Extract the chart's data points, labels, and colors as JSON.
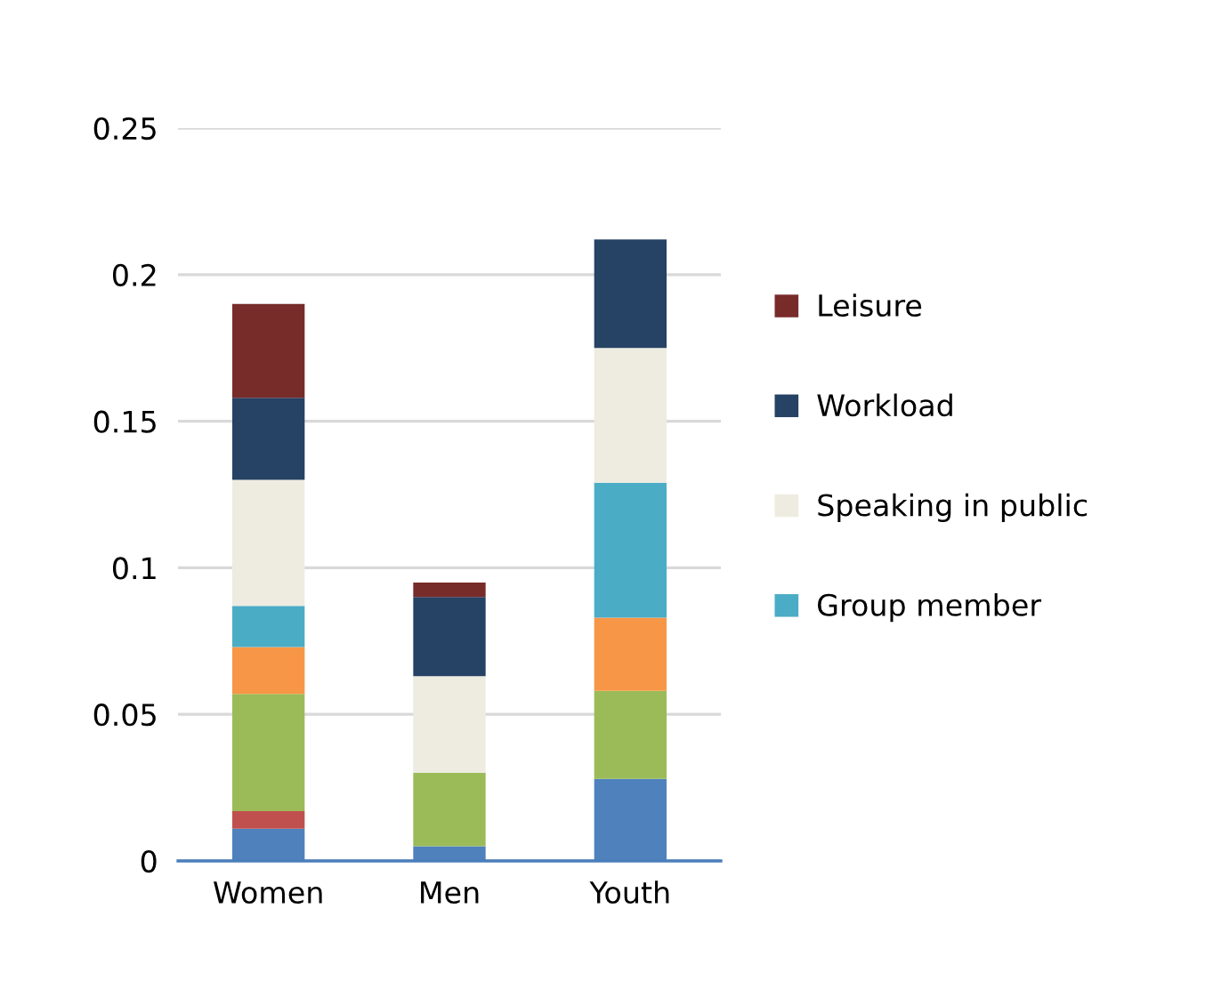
{
  "chart_data": {
    "type": "bar",
    "stacked": true,
    "categories": [
      "Women",
      "Men",
      "Youth"
    ],
    "series": [
      {
        "color": "#4f81bd",
        "values": [
          0.011,
          0.005,
          0.028
        ]
      },
      {
        "color": "#c0504d",
        "values": [
          0.006,
          0,
          0
        ]
      },
      {
        "color": "#9bbb59",
        "values": [
          0.04,
          0.025,
          0.03
        ]
      },
      {
        "color": "#f79646",
        "values": [
          0.016,
          0,
          0.025
        ]
      },
      {
        "name": "Group member",
        "color": "#4bacc6",
        "values": [
          0.014,
          0,
          0.046
        ]
      },
      {
        "name": "Speaking in public",
        "color": "#eeece1",
        "values": [
          0.043,
          0.033,
          0.046
        ]
      },
      {
        "name": "Workload",
        "color": "#264264",
        "values": [
          0.028,
          0.027,
          0.037
        ]
      },
      {
        "name": "Leisure",
        "color": "#772c2a",
        "values": [
          0.032,
          0.005,
          0
        ]
      }
    ],
    "ylim": [
      0,
      0.25
    ],
    "yticks": [
      0,
      0.05,
      0.1,
      0.15,
      0.2,
      0.25
    ],
    "grid": "y",
    "legend": "right"
  }
}
